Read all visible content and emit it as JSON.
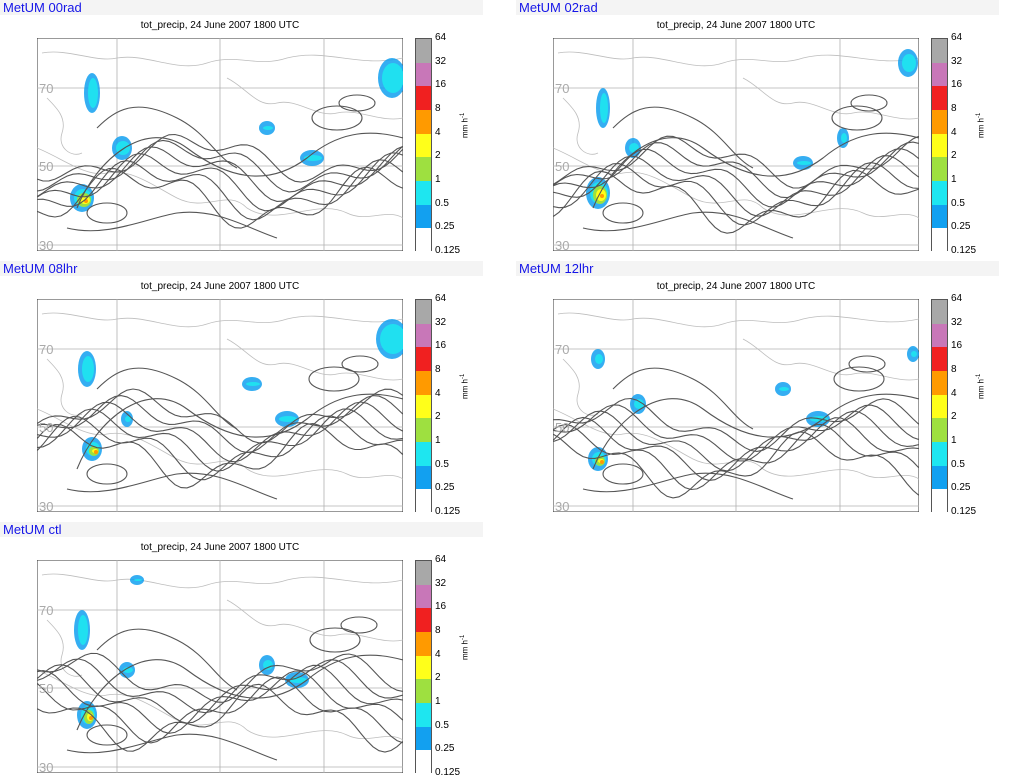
{
  "subtitle": "tot_precip, 24 June 2007 1800 UTC",
  "unit_label": "mm h",
  "unit_exp": "-1",
  "lat_labels": [
    "70",
    "50",
    "30"
  ],
  "colorbar": {
    "labels": [
      "64",
      "32",
      "16",
      "8",
      "4",
      "2",
      "1",
      "0.5",
      "0.25",
      "0.125"
    ],
    "colors": [
      "#a8a8a8",
      "#c877b8",
      "#f02020",
      "#ff9a00",
      "#ffff1a",
      "#9ee040",
      "#1ee6f0",
      "#12a0f0",
      "#ffffff"
    ]
  },
  "panels": [
    {
      "title": "MetUM 00rad"
    },
    {
      "title": "MetUM 02rad"
    },
    {
      "title": "MetUM 08lhr"
    },
    {
      "title": "MetUM 12lhr"
    },
    {
      "title": "MetUM ctl"
    }
  ]
}
